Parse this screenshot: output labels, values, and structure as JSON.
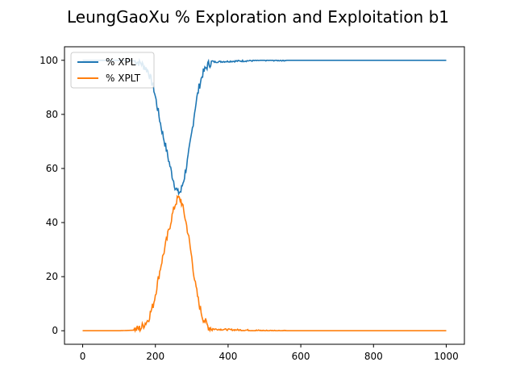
{
  "chart_data": {
    "type": "line",
    "title": "LeungGaoXu % Exploration and Exploitation b1",
    "xlabel": "",
    "ylabel": "",
    "xlim": [
      -50,
      1050
    ],
    "ylim": [
      -5,
      105
    ],
    "xticks": [
      0,
      200,
      400,
      600,
      800,
      1000
    ],
    "yticks": [
      0,
      20,
      40,
      60,
      80,
      100
    ],
    "grid": false,
    "legend_position": "top-left",
    "series": [
      {
        "name": "% XPL",
        "color": "#1f77b4",
        "points": [
          [
            0,
            100
          ],
          [
            100,
            100
          ],
          [
            140,
            99.8
          ],
          [
            160,
            99
          ],
          [
            180,
            96
          ],
          [
            195,
            90
          ],
          [
            205,
            83
          ],
          [
            215,
            76
          ],
          [
            225,
            70
          ],
          [
            235,
            64
          ],
          [
            245,
            58
          ],
          [
            255,
            53
          ],
          [
            262,
            51
          ],
          [
            270,
            51.5
          ],
          [
            280,
            57
          ],
          [
            290,
            64
          ],
          [
            300,
            73
          ],
          [
            310,
            83
          ],
          [
            320,
            90
          ],
          [
            330,
            95
          ],
          [
            345,
            98.5
          ],
          [
            360,
            99.4
          ],
          [
            400,
            99.6
          ],
          [
            450,
            99.8
          ],
          [
            500,
            100
          ],
          [
            1000,
            100
          ]
        ]
      },
      {
        "name": "% XPLT",
        "color": "#ff7f0e",
        "points": [
          [
            0,
            0
          ],
          [
            100,
            0
          ],
          [
            140,
            0.2
          ],
          [
            160,
            1
          ],
          [
            180,
            4
          ],
          [
            195,
            10
          ],
          [
            205,
            17
          ],
          [
            215,
            24
          ],
          [
            225,
            30
          ],
          [
            235,
            36
          ],
          [
            245,
            42
          ],
          [
            255,
            47
          ],
          [
            262,
            49
          ],
          [
            270,
            48.5
          ],
          [
            280,
            43
          ],
          [
            290,
            36
          ],
          [
            300,
            27
          ],
          [
            310,
            17
          ],
          [
            320,
            10
          ],
          [
            330,
            5
          ],
          [
            345,
            1.5
          ],
          [
            360,
            0.6
          ],
          [
            400,
            0.4
          ],
          [
            450,
            0.2
          ],
          [
            500,
            0
          ],
          [
            1000,
            0
          ]
        ]
      }
    ]
  }
}
